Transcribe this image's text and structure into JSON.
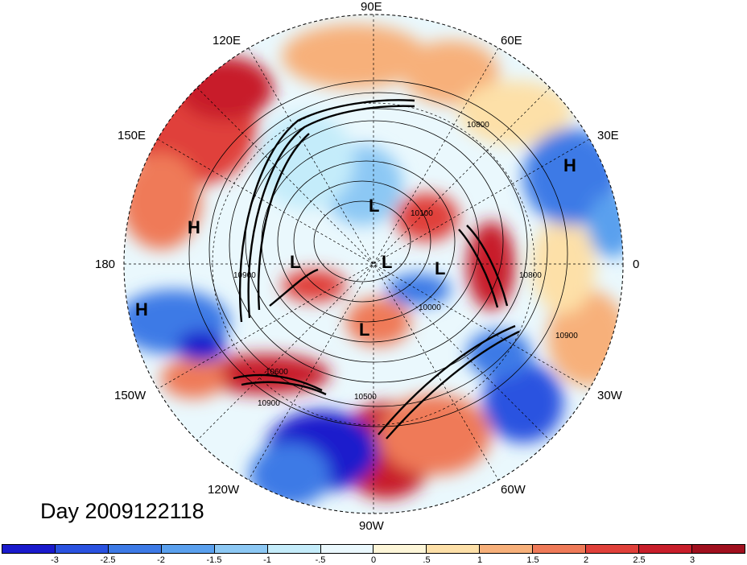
{
  "title": "Day 2009122118",
  "longitude_labels": {
    "e90": "90E",
    "e60": "60E",
    "e30": "30E",
    "e0": "0",
    "w30": "30W",
    "w60": "60W",
    "w90": "90W",
    "w120": "120W",
    "w150": "150W",
    "e180": "180",
    "e150": "150E",
    "e120": "120E"
  },
  "pressure_centers": [
    {
      "type": "H",
      "name": "high-atlantic"
    },
    {
      "type": "H",
      "name": "high-pacific"
    },
    {
      "type": "H",
      "name": "high-west"
    },
    {
      "type": "L",
      "name": "low-arctic-north"
    },
    {
      "type": "L",
      "name": "low-arctic-west"
    },
    {
      "type": "L",
      "name": "low-arctic-center"
    },
    {
      "type": "L",
      "name": "low-arctic-east"
    },
    {
      "type": "L",
      "name": "low-hudson"
    }
  ],
  "contour_labels": [
    "10800",
    "10900",
    "10100",
    "10000",
    "10600",
    "10500",
    "10800",
    "10900",
    "10900"
  ],
  "colorbar": {
    "ticks": [
      "-3",
      "-2.5",
      "-2",
      "-1.5",
      "-1",
      "-.5",
      "0",
      ".5",
      "1",
      "1.5",
      "2",
      "2.5",
      "3"
    ],
    "colors": [
      "#1a1acc",
      "#2a52e0",
      "#3d7ae6",
      "#5aa0ee",
      "#8cc8f4",
      "#c4ecfa",
      "#eaf8fd",
      "#fdf6d8",
      "#fde0a8",
      "#f7b07a",
      "#ef7a58",
      "#e0403a",
      "#c81e2a",
      "#a0101e"
    ]
  }
}
